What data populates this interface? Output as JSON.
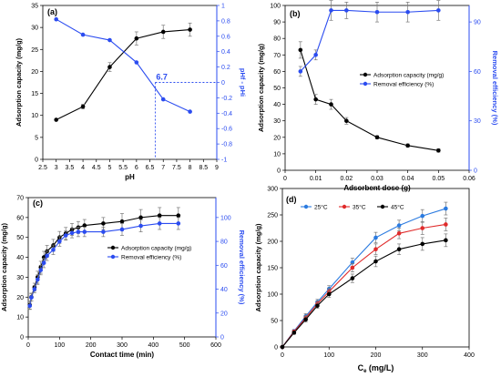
{
  "chart_data": [
    {
      "panel_label": "(a)",
      "type": "line",
      "xlabel": "pH",
      "ylabel": "Adsorption capacity (mg/g)",
      "y2label": "pHf - pHi",
      "xlim": [
        2.5,
        9
      ],
      "ylim": [
        0,
        35
      ],
      "y2lim": [
        -1,
        1
      ],
      "xticks": [
        "2.5",
        "3",
        "3.5",
        "4",
        "4.5",
        "5",
        "5.5",
        "6",
        "6.5",
        "7",
        "7.5",
        "8",
        "8.5",
        "9"
      ],
      "yticks": [
        "0",
        "5",
        "10",
        "15",
        "20",
        "25",
        "30",
        "35"
      ],
      "y2ticks": [
        "-1",
        "-0.8",
        "-0.6",
        "-0.4",
        "-0.2",
        "0",
        "0.2",
        "0.4",
        "0.6",
        "0.8",
        "1"
      ],
      "annotation": "6.7",
      "annotation_x": 6.7,
      "series": [
        {
          "axis": "left",
          "color": "#000000",
          "marker": "circle",
          "x": [
            3,
            4,
            5,
            6,
            7,
            8
          ],
          "y": [
            9,
            12,
            21,
            27.5,
            29,
            29.5
          ],
          "err": [
            0,
            0.5,
            1,
            1.5,
            1.5,
            1.5
          ]
        },
        {
          "axis": "right",
          "color": "#2b4cf0",
          "marker": "circle",
          "x": [
            3,
            4,
            5,
            6,
            7,
            8
          ],
          "y": [
            0.82,
            0.62,
            0.55,
            0.26,
            -0.22,
            -0.38
          ],
          "err": [
            0,
            0,
            0,
            0,
            0,
            0
          ]
        }
      ]
    },
    {
      "panel_label": "(b)",
      "type": "line",
      "xlabel": "Adsorbent dose (g)",
      "ylabel": "Adsorption capacity (mg/g)",
      "y2label": "Removal efficiency (%)",
      "xlim": [
        0,
        0.06
      ],
      "ylim": [
        0,
        100
      ],
      "y2lim": [
        0,
        100
      ],
      "xticks": [
        "0",
        "0.01",
        "0.02",
        "0.03",
        "0.04",
        "0.05",
        "0.06"
      ],
      "yticks": [
        "0",
        "10",
        "20",
        "30",
        "40",
        "50",
        "60",
        "70",
        "80",
        "90",
        "100"
      ],
      "y2ticks": [
        "0",
        "30",
        "60",
        "90"
      ],
      "legend": [
        "Adsorption capacity (mg/g)",
        "Removal efficiency (%)"
      ],
      "series": [
        {
          "axis": "left",
          "color": "#000000",
          "marker": "circle",
          "x": [
            0.005,
            0.01,
            0.015,
            0.02,
            0.03,
            0.04,
            0.05
          ],
          "y": [
            73,
            43,
            40,
            30,
            20,
            15,
            12
          ],
          "err": [
            5,
            3,
            3,
            2,
            1,
            1,
            1
          ]
        },
        {
          "axis": "right",
          "color": "#2b4cf0",
          "marker": "circle",
          "x": [
            0.005,
            0.01,
            0.015,
            0.02,
            0.03,
            0.04,
            0.05
          ],
          "y": [
            60,
            70,
            97,
            97,
            96,
            96,
            97
          ],
          "err": [
            3,
            3,
            6,
            5,
            6,
            6,
            6
          ]
        }
      ]
    },
    {
      "panel_label": "(c)",
      "type": "line",
      "xlabel": "Contact time (min)",
      "ylabel": "Adsorption capacity (mg/g)",
      "y2label": "Removal efficiency (%)",
      "xlim": [
        0,
        600
      ],
      "ylim": [
        0,
        70
      ],
      "y2lim": [
        0,
        116.67
      ],
      "xticks": [
        "0",
        "100",
        "200",
        "300",
        "400",
        "500",
        "600"
      ],
      "yticks": [
        "0",
        "10",
        "20",
        "30",
        "40",
        "50",
        "60",
        "70"
      ],
      "y2ticks": [
        "0",
        "20",
        "40",
        "60",
        "80",
        "100"
      ],
      "legend": [
        "Adsorption capacity (mg/g)",
        "Removal efficiency (%)"
      ],
      "series": [
        {
          "axis": "left",
          "color": "#000000",
          "marker": "circle",
          "x": [
            5,
            10,
            20,
            30,
            40,
            50,
            60,
            80,
            100,
            120,
            140,
            160,
            180,
            240,
            300,
            360,
            420,
            480
          ],
          "y": [
            16,
            20,
            25,
            30,
            35,
            40,
            43,
            46,
            50,
            52,
            54,
            55,
            56,
            57,
            58,
            60,
            61,
            61
          ],
          "err": [
            2,
            2,
            2,
            3,
            3,
            3,
            3,
            3,
            3,
            3,
            3,
            3,
            3,
            3,
            4,
            4,
            4,
            4
          ]
        },
        {
          "axis": "right",
          "color": "#2b4cf0",
          "marker": "circle",
          "x": [
            5,
            10,
            20,
            30,
            40,
            50,
            60,
            80,
            100,
            120,
            140,
            160,
            180,
            240,
            300,
            360,
            420,
            480
          ],
          "y": [
            26,
            33,
            40,
            48,
            56,
            62,
            68,
            73,
            80,
            85,
            87,
            88,
            88,
            88,
            90,
            93,
            95,
            95
          ],
          "err": [
            3,
            3,
            3,
            4,
            4,
            4,
            4,
            4,
            4,
            4,
            4,
            4,
            4,
            4,
            5,
            5,
            5,
            5
          ]
        }
      ]
    },
    {
      "panel_label": "(d)",
      "type": "line",
      "xlabel": "Ce (mg/L)",
      "xlabel_main": "C",
      "xlabel_sub": "e",
      "xlabel_rest": " (mg/L)",
      "ylabel": "Adsorption capacity (mg/g)",
      "xlim": [
        0,
        400
      ],
      "ylim": [
        0,
        300
      ],
      "xticks": [
        "0",
        "100",
        "200",
        "300",
        "400"
      ],
      "yticks": [
        "0",
        "50",
        "100",
        "150",
        "200",
        "250",
        "300"
      ],
      "legend": [
        "25°C",
        "35°C",
        "45°C"
      ],
      "series": [
        {
          "name": "25°C",
          "axis": "left",
          "color": "#2b7be0",
          "marker": "circle",
          "x": [
            0,
            25,
            50,
            75,
            100,
            150,
            200,
            250,
            300,
            350
          ],
          "y": [
            0,
            30,
            58,
            85,
            110,
            160,
            207,
            230,
            248,
            262
          ],
          "err": [
            0,
            3,
            5,
            5,
            6,
            8,
            10,
            10,
            12,
            12
          ]
        },
        {
          "name": "35°C",
          "axis": "left",
          "color": "#e02b2b",
          "marker": "circle",
          "x": [
            0,
            25,
            50,
            75,
            100,
            150,
            200,
            250,
            300,
            350
          ],
          "y": [
            0,
            29,
            55,
            82,
            105,
            150,
            185,
            215,
            225,
            232
          ],
          "err": [
            0,
            3,
            5,
            5,
            6,
            8,
            10,
            10,
            12,
            12
          ]
        },
        {
          "name": "45°C",
          "axis": "left",
          "color": "#000000",
          "marker": "circle",
          "x": [
            0,
            25,
            50,
            75,
            100,
            150,
            200,
            250,
            300,
            350
          ],
          "y": [
            0,
            27,
            52,
            78,
            100,
            130,
            162,
            185,
            195,
            202
          ],
          "err": [
            0,
            3,
            5,
            5,
            6,
            8,
            10,
            10,
            12,
            12
          ]
        }
      ]
    }
  ]
}
